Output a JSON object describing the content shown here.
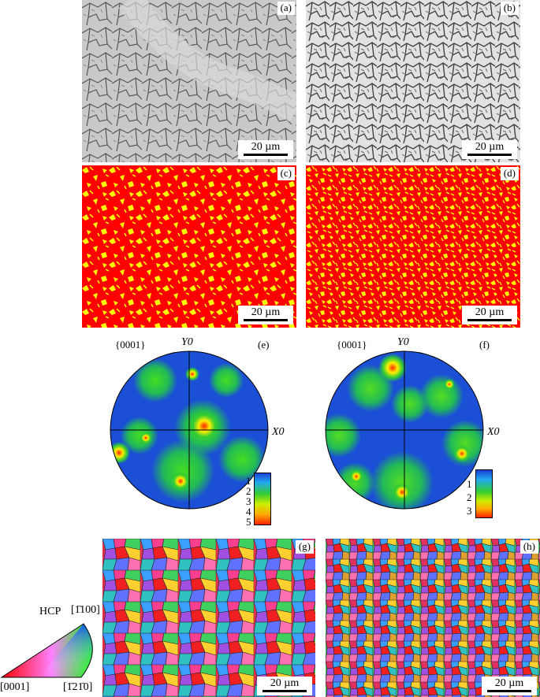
{
  "panels": {
    "a": "(a)",
    "b": "(b)",
    "c": "(c)",
    "d": "(d)",
    "e": "(e)",
    "f": "(f)",
    "g": "(g)",
    "h": "(h)"
  },
  "scale_bar": "20 µm",
  "pole_figure": {
    "plane": "{0001}",
    "y_axis": "Y0",
    "x_axis": "X0",
    "e_colorbar": [
      "1",
      "2",
      "3",
      "4",
      "5"
    ],
    "f_colorbar": [
      "1",
      "2",
      "3"
    ]
  },
  "ipf_key": {
    "title": "HCP",
    "top": "[1̄100]",
    "left": "[0001]",
    "right": "[1̄21̄0]"
  },
  "colors": {
    "phase_alpha": "#ff0000",
    "phase_beta": "#ffff00",
    "micrograph_bg": "#c8c8c8"
  }
}
